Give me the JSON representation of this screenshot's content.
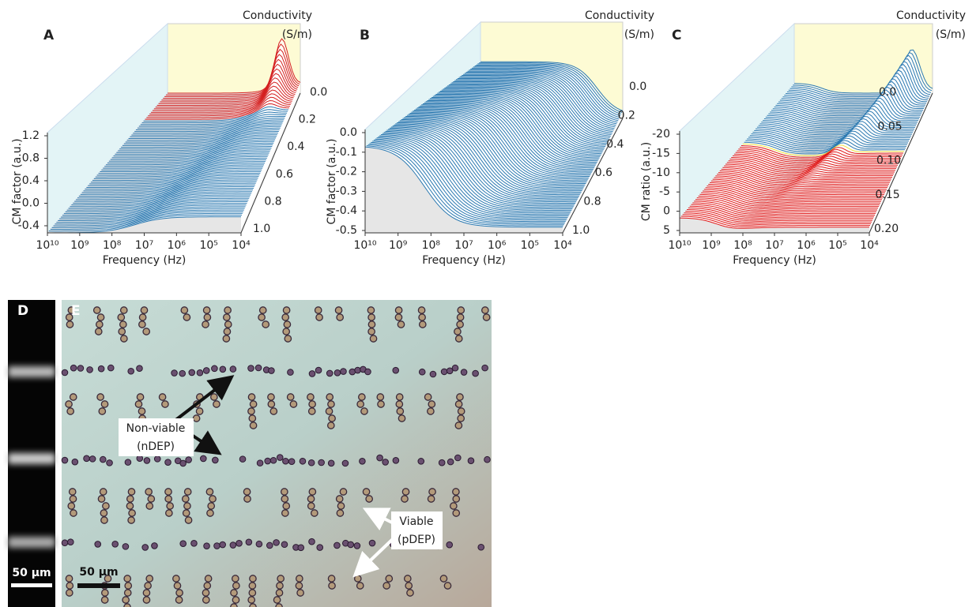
{
  "panels": [
    {
      "label": "A",
      "z_title": [
        "Conductivity",
        "(S/m)"
      ],
      "y_label": "CM factor (a.u.)",
      "y_ticks": [
        "1.2",
        "0.8",
        "0.4",
        "0.0",
        "-0.4"
      ],
      "x_label": "Frequency (Hz)",
      "x_ticks": [
        "10¹⁰",
        "10⁹",
        "10⁸",
        "10⁷",
        "10⁶",
        "10⁵",
        "10⁴"
      ],
      "z_ticks": [
        "0.0",
        "0.2",
        "0.4",
        "0.6",
        "0.8",
        "1.0"
      ]
    },
    {
      "label": "B",
      "z_title": [
        "Conductivity",
        "(S/m)"
      ],
      "y_label": "CM factor (a.u.)",
      "y_ticks": [
        "0.0",
        "-0.1",
        "-0.2",
        "-0.3",
        "-0.4",
        "-0.5"
      ],
      "x_label": "Frequency (Hz)",
      "x_ticks": [
        "10¹⁰",
        "10⁹",
        "10⁸",
        "10⁷",
        "10⁶",
        "10⁵",
        "10⁴"
      ],
      "z_ticks": [
        "0.0",
        "0.2",
        "0.4",
        "0.6",
        "0.8",
        "1.0"
      ]
    },
    {
      "label": "C",
      "z_title": [
        "Conductivity",
        "(S/m)"
      ],
      "y_label": "CM ratio (a.u.)",
      "y_ticks": [
        "-20",
        "-15",
        "-10",
        "-5",
        "0",
        "5"
      ],
      "x_label": "Frequency (Hz)",
      "x_ticks": [
        "10¹⁰",
        "10⁹",
        "10⁸",
        "10⁷",
        "10⁶",
        "10⁵",
        "10⁴"
      ],
      "z_ticks": [
        "0.0",
        "0.05",
        "0.10",
        "0.15",
        "0.20"
      ]
    }
  ],
  "micrographs": [
    {
      "label": "D",
      "scale_bar": "50 µm"
    },
    {
      "label": "E",
      "scale_bar": "50 µm",
      "annotations": [
        {
          "lines": [
            "Non-viable",
            "(nDEP)"
          ]
        },
        {
          "lines": [
            "Viable",
            "(pDEP)"
          ]
        }
      ]
    }
  ]
}
